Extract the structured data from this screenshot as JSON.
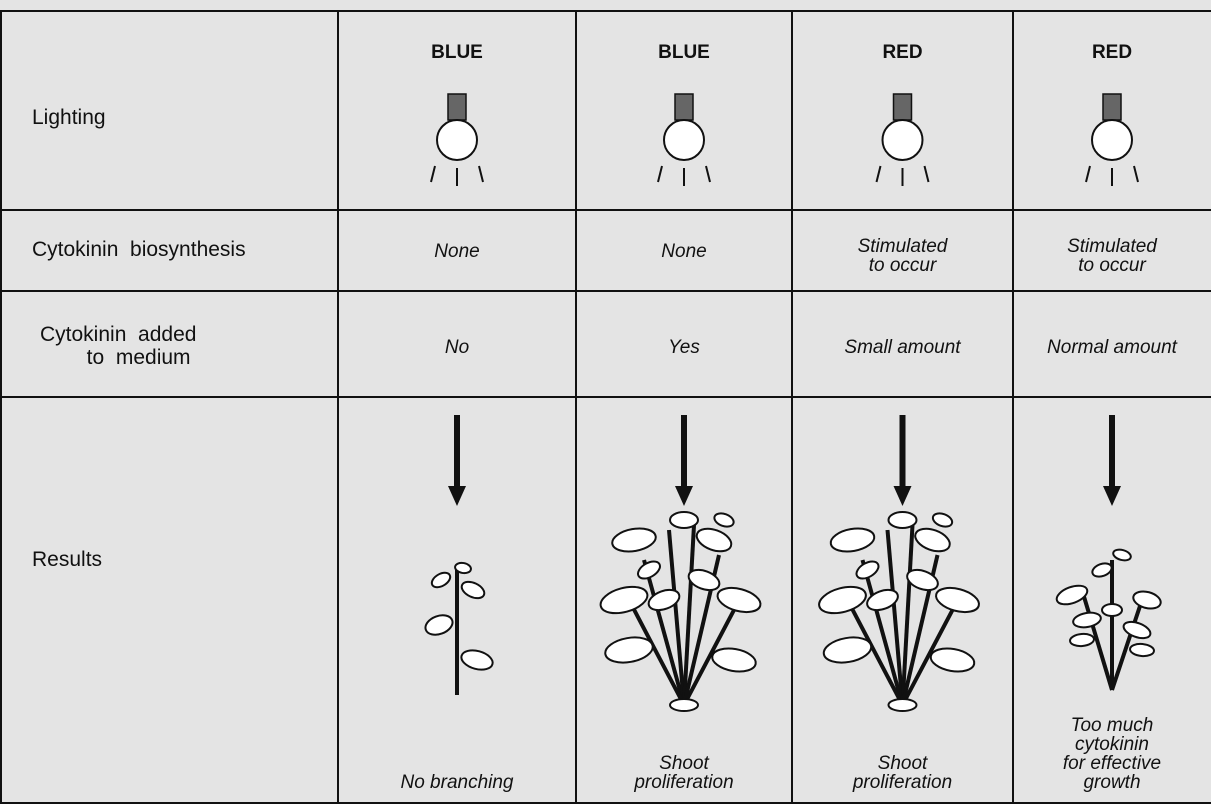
{
  "table": {
    "rows": [
      {
        "label": "Lighting",
        "cells": [
          "BLUE",
          "BLUE",
          "RED",
          "RED"
        ]
      },
      {
        "label": "Cytokinin  biosynthesis",
        "cells": [
          "None",
          "None",
          "Stimulated\nto  occur",
          "Stimulated\nto  occur"
        ]
      },
      {
        "label": "Cytokinin  added\n        to  medium",
        "cells": [
          "No",
          "Yes",
          "Small  amount",
          "Normal  amount"
        ]
      },
      {
        "label": "Results",
        "cells": [
          "No  branching",
          "Shoot\nproliferation",
          "Shoot\nproliferation",
          "Too  much\ncytokinin\nfor  effective\ngrowth"
        ]
      }
    ]
  }
}
